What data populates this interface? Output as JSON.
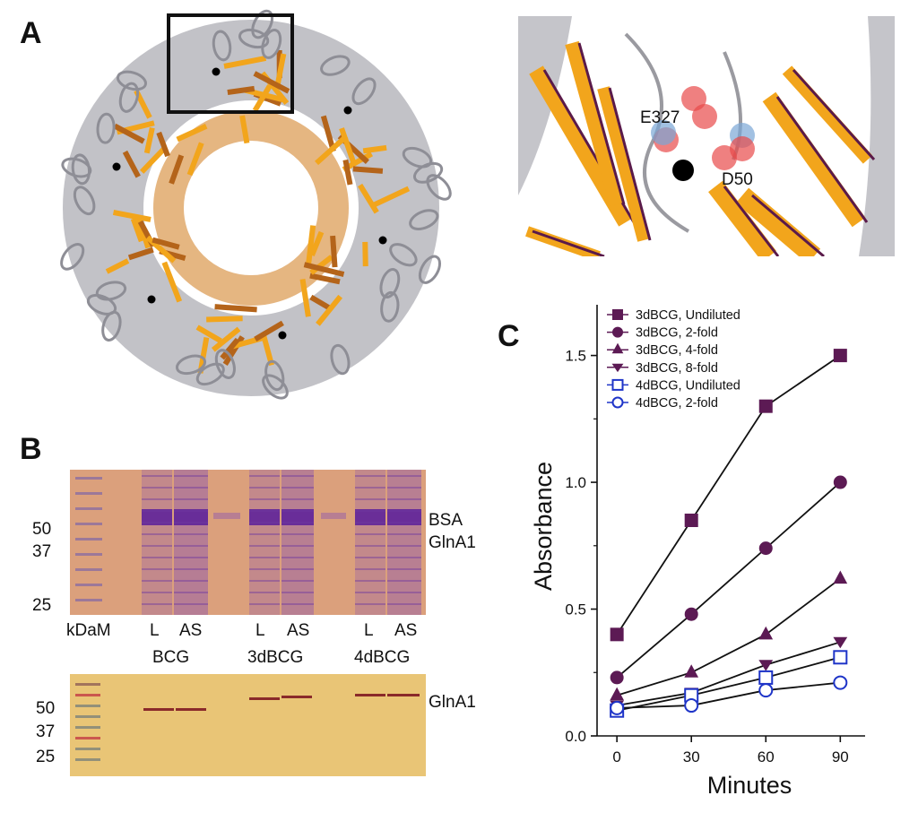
{
  "panels": {
    "a": {
      "label": "A",
      "residue_1": "E327",
      "residue_2": "D50"
    },
    "b": {
      "label": "B",
      "gel": {
        "mw_markers": [
          "50",
          "37",
          "25"
        ],
        "right_labels": [
          "BSA",
          "GlnA1"
        ],
        "lane_row": [
          "kDaM",
          "L",
          "AS",
          "L",
          "AS",
          "L",
          "AS"
        ],
        "groups": [
          "BCG",
          "3dBCG",
          "4dBCG"
        ]
      },
      "blot": {
        "mw_markers": [
          "50",
          "37",
          "25"
        ],
        "right_label": "GlnA1"
      }
    },
    "c": {
      "label": "C"
    }
  },
  "colors": {
    "series_filled": "#5c1a54",
    "series_open": "#1f35c8",
    "gel_bg": "#dba07c",
    "blot_bg": "#e9c576",
    "beta_sheet": "#f2a51c",
    "helix": "#b7b7bd"
  },
  "chart_data": {
    "type": "line",
    "xlabel": "Minutes",
    "ylabel": "Absorbance",
    "x": [
      0,
      30,
      60,
      90
    ],
    "xlim": [
      -8,
      100
    ],
    "ylim": [
      0,
      1.7
    ],
    "xticks": [
      "0",
      "30",
      "60",
      "90"
    ],
    "yticks": [
      "0.0",
      "0.5",
      "1.0",
      "1.5"
    ],
    "legend_position": "top-left",
    "grid": false,
    "series": [
      {
        "name": "3dBCG, Undiluted",
        "values": [
          0.4,
          0.85,
          1.3,
          1.5
        ],
        "marker": "square",
        "filled": true
      },
      {
        "name": "3dBCG, 2-fold",
        "values": [
          0.23,
          0.48,
          0.74,
          1.0
        ],
        "marker": "circle",
        "filled": true
      },
      {
        "name": "3dBCG, 4-fold",
        "values": [
          0.16,
          0.25,
          0.4,
          0.62
        ],
        "marker": "triangle-up",
        "filled": true
      },
      {
        "name": "3dBCG, 8-fold",
        "values": [
          0.12,
          0.17,
          0.28,
          0.37
        ],
        "marker": "triangle-down",
        "filled": true
      },
      {
        "name": "4dBCG, Undiluted",
        "values": [
          0.1,
          0.16,
          0.23,
          0.31
        ],
        "marker": "square",
        "filled": false
      },
      {
        "name": "4dBCG, 2-fold",
        "values": [
          0.11,
          0.12,
          0.18,
          0.21
        ],
        "marker": "circle",
        "filled": false
      }
    ]
  }
}
